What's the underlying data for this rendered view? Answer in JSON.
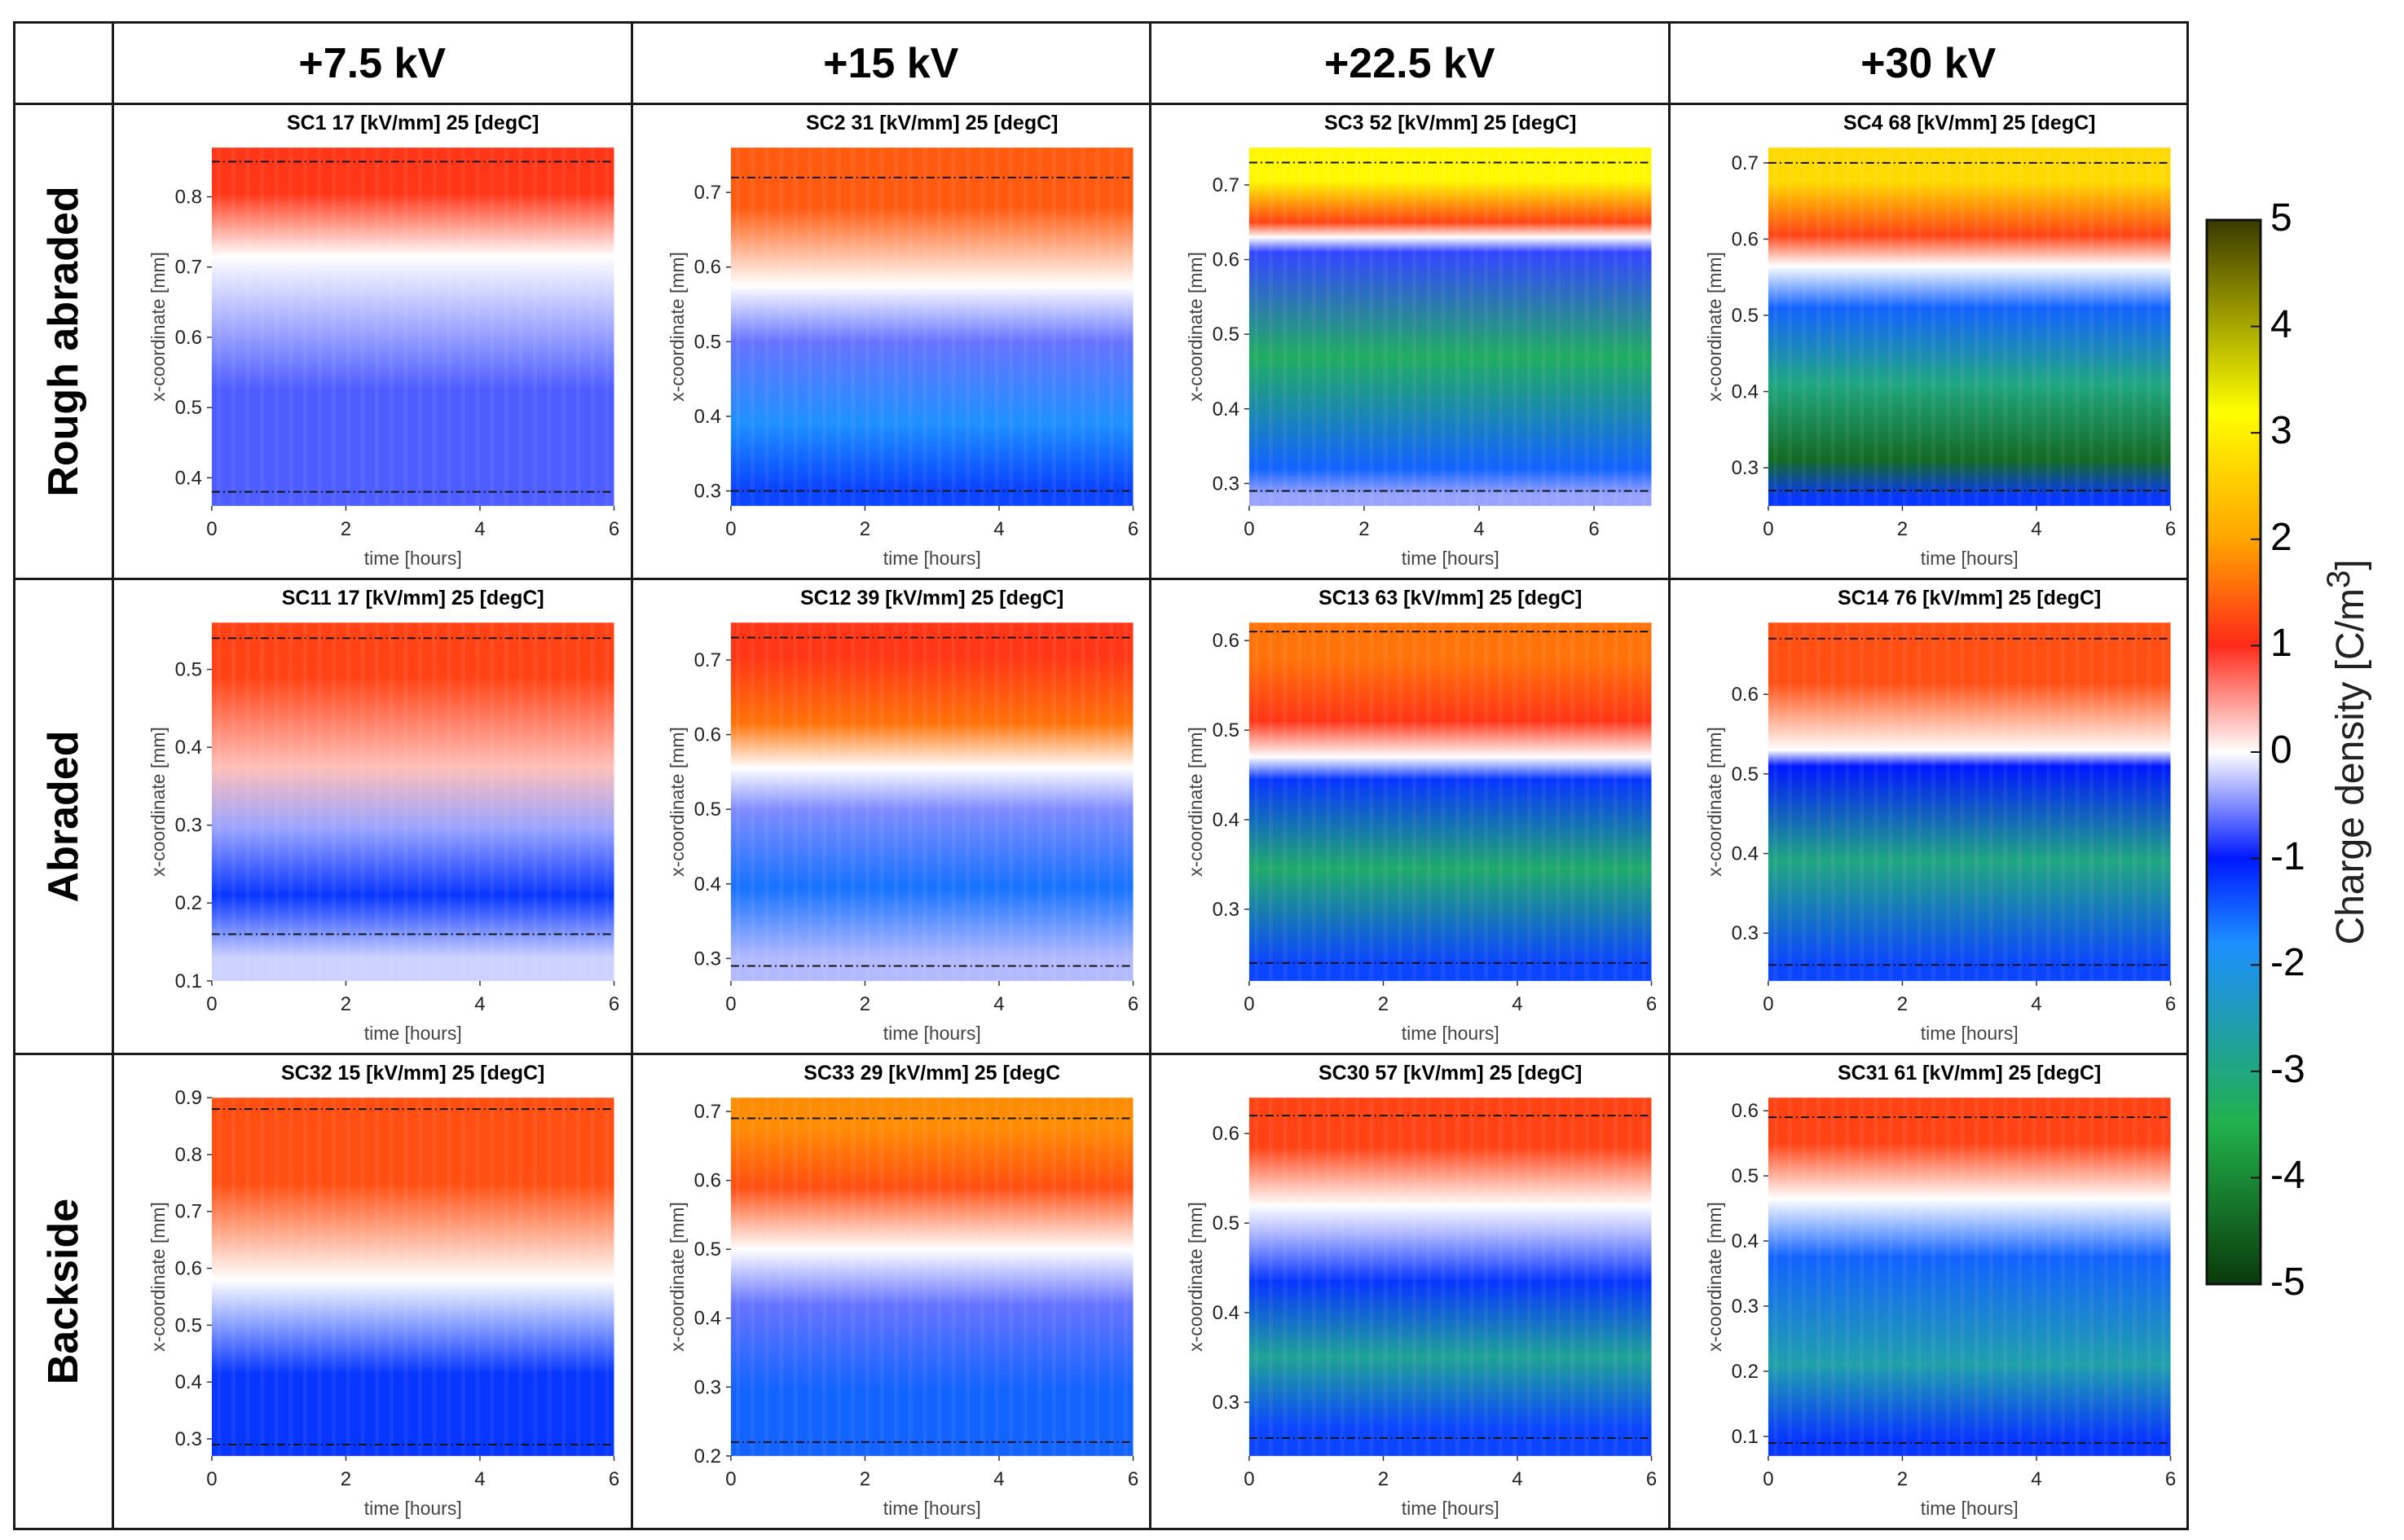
{
  "column_headers": [
    "+7.5 kV",
    "+15 kV",
    "+22.5 kV",
    "+30 kV"
  ],
  "row_headers": [
    "Rough abraded",
    "Abraded",
    "Backside"
  ],
  "colorbar": {
    "label": "Charge density [C/m",
    "label_sup": "3",
    "label_close": "]",
    "ticks": [
      "5",
      "4",
      "3",
      "2",
      "1",
      "0",
      "-1",
      "-2",
      "-3",
      "-4",
      "-5"
    ],
    "range": [
      -5,
      5
    ],
    "colors": [
      "#0a3a0a",
      "#22b14c",
      "#1e90ff",
      "#0018ff",
      "#ffffff",
      "#ff2a1a",
      "#ffa500",
      "#ffff00",
      "#3a3a00"
    ]
  },
  "chart_data": [
    {
      "type": "heatmap",
      "row": "Rough abraded",
      "column": "+7.5 kV",
      "title": "SC1 17 [kV/mm] 25 [degC]",
      "xlabel": "time [hours]",
      "ylabel": "x-coordinate [mm]",
      "xlim": [
        0,
        6
      ],
      "ylim": [
        0.36,
        0.87
      ],
      "xticks": [
        "0",
        "2",
        "4",
        "6"
      ],
      "yticks": [
        "0.4",
        "0.5",
        "0.6",
        "0.7",
        "0.8"
      ],
      "electrodes_mm": [
        0.38,
        0.85
      ],
      "bands": [
        {
          "from": 0.36,
          "to": 0.69,
          "charge": -0.7
        },
        {
          "from": 0.69,
          "to": 0.74,
          "charge": 0
        },
        {
          "from": 0.74,
          "to": 0.87,
          "charge": 1.1
        }
      ]
    },
    {
      "type": "heatmap",
      "row": "Rough abraded",
      "column": "+15 kV",
      "title": "SC2 31 [kV/mm] 25 [degC]",
      "xlabel": "time [hours]",
      "ylabel": "x-coordinate [mm]",
      "xlim": [
        0,
        6
      ],
      "ylim": [
        0.28,
        0.76
      ],
      "xticks": [
        "0",
        "2",
        "4",
        "6"
      ],
      "yticks": [
        "0.3",
        "0.4",
        "0.5",
        "0.6",
        "0.7"
      ],
      "electrodes_mm": [
        0.3,
        0.72
      ],
      "bands": [
        {
          "from": 0.28,
          "to": 0.33,
          "charge": -1.3
        },
        {
          "from": 0.33,
          "to": 0.45,
          "charge": -1.8
        },
        {
          "from": 0.45,
          "to": 0.55,
          "charge": -0.6
        },
        {
          "from": 0.55,
          "to": 0.6,
          "charge": 0
        },
        {
          "from": 0.6,
          "to": 0.76,
          "charge": 1.4
        }
      ]
    },
    {
      "type": "heatmap",
      "row": "Rough abraded",
      "column": "+22.5 kV",
      "title": "SC3 52 [kV/mm] 25 [degC]",
      "xlabel": "time [hours]",
      "ylabel": "x-coordinate [mm]",
      "xlim": [
        0,
        7
      ],
      "ylim": [
        0.27,
        0.75
      ],
      "xticks": [
        "0",
        "2",
        "4",
        "6"
      ],
      "yticks": [
        "0.3",
        "0.4",
        "0.5",
        "0.6",
        "0.7"
      ],
      "electrodes_mm": [
        0.29,
        0.73
      ],
      "bands": [
        {
          "from": 0.27,
          "to": 0.3,
          "charge": -0.4
        },
        {
          "from": 0.3,
          "to": 0.34,
          "charge": -1.5
        },
        {
          "from": 0.34,
          "to": 0.6,
          "charge": -3.3
        },
        {
          "from": 0.6,
          "to": 0.62,
          "charge": -0.8
        },
        {
          "from": 0.62,
          "to": 0.64,
          "charge": 0
        },
        {
          "from": 0.64,
          "to": 0.66,
          "charge": 1.2
        },
        {
          "from": 0.66,
          "to": 0.75,
          "charge": 3.1
        }
      ]
    },
    {
      "type": "heatmap",
      "row": "Rough abraded",
      "column": "+30 kV",
      "title": "SC4 68 [kV/mm] 25 [degC]",
      "xlabel": "time [hours]",
      "ylabel": "x-coordinate [mm]",
      "xlim": [
        0,
        6
      ],
      "ylim": [
        0.25,
        0.72
      ],
      "xticks": [
        "0",
        "2",
        "4",
        "6"
      ],
      "yticks": [
        "0.3",
        "0.4",
        "0.5",
        "0.6",
        "0.7"
      ],
      "electrodes_mm": [
        0.27,
        0.7
      ],
      "bands": [
        {
          "from": 0.25,
          "to": 0.27,
          "charge": -1.2
        },
        {
          "from": 0.27,
          "to": 0.35,
          "charge": -4.4
        },
        {
          "from": 0.35,
          "to": 0.47,
          "charge": -3
        },
        {
          "from": 0.47,
          "to": 0.55,
          "charge": -1.5
        },
        {
          "from": 0.55,
          "to": 0.58,
          "charge": 0
        },
        {
          "from": 0.58,
          "to": 0.63,
          "charge": 1.2
        },
        {
          "from": 0.63,
          "to": 0.72,
          "charge": 2.7
        }
      ]
    },
    {
      "type": "heatmap",
      "row": "Abraded",
      "column": "+7.5 kV",
      "title": "SC11 17 [kV/mm] 25 [degC]",
      "xlabel": "time [hours]",
      "ylabel": "x-coordinate [mm]",
      "xlim": [
        0,
        6
      ],
      "ylim": [
        0.1,
        0.56
      ],
      "xticks": [
        "0",
        "2",
        "4",
        "6"
      ],
      "yticks": [
        "0.1",
        "0.2",
        "0.3",
        "0.4",
        "0.5"
      ],
      "electrodes_mm": [
        0.16,
        0.54
      ],
      "bands": [
        {
          "from": 0.1,
          "to": 0.16,
          "charge": -0.2
        },
        {
          "from": 0.16,
          "to": 0.26,
          "charge": -1.2
        },
        {
          "from": 0.26,
          "to": 0.33,
          "charge": -0.4
        },
        {
          "from": 0.33,
          "to": 0.42,
          "charge": 0.3
        },
        {
          "from": 0.42,
          "to": 0.56,
          "charge": 1.2
        }
      ]
    },
    {
      "type": "heatmap",
      "row": "Abraded",
      "column": "+15 kV",
      "title": "SC12 39 [kV/mm] 25 [degC]",
      "xlabel": "time [hours]",
      "ylabel": "x-coordinate [mm]",
      "xlim": [
        0,
        6
      ],
      "ylim": [
        0.27,
        0.75
      ],
      "xticks": [
        "0",
        "2",
        "4",
        "6"
      ],
      "yticks": [
        "0.3",
        "0.4",
        "0.5",
        "0.6",
        "0.7"
      ],
      "electrodes_mm": [
        0.29,
        0.73
      ],
      "bands": [
        {
          "from": 0.27,
          "to": 0.33,
          "charge": -0.3
        },
        {
          "from": 0.33,
          "to": 0.46,
          "charge": -1.6
        },
        {
          "from": 0.46,
          "to": 0.54,
          "charge": -0.5
        },
        {
          "from": 0.54,
          "to": 0.57,
          "charge": 0
        },
        {
          "from": 0.57,
          "to": 0.66,
          "charge": 1.6
        },
        {
          "from": 0.66,
          "to": 0.75,
          "charge": 1.1
        }
      ]
    },
    {
      "type": "heatmap",
      "row": "Abraded",
      "column": "+22.5 kV",
      "title": "SC13 63 [kV/mm] 25 [degC]",
      "xlabel": "time [hours]",
      "ylabel": "x-coordinate [mm]",
      "xlim": [
        0,
        6
      ],
      "ylim": [
        0.22,
        0.62
      ],
      "xticks": [
        "0",
        "2",
        "4",
        "6"
      ],
      "yticks": [
        "0.3",
        "0.4",
        "0.5",
        "0.6"
      ],
      "electrodes_mm": [
        0.24,
        0.61
      ],
      "bands": [
        {
          "from": 0.22,
          "to": 0.26,
          "charge": -1.3
        },
        {
          "from": 0.26,
          "to": 0.43,
          "charge": -3.2
        },
        {
          "from": 0.43,
          "to": 0.46,
          "charge": -1.2
        },
        {
          "from": 0.46,
          "to": 0.48,
          "charge": 0
        },
        {
          "from": 0.48,
          "to": 0.54,
          "charge": 1.1
        },
        {
          "from": 0.54,
          "to": 0.62,
          "charge": 1.6
        }
      ]
    },
    {
      "type": "heatmap",
      "row": "Abraded",
      "column": "+30 kV",
      "title": "SC14 76 [kV/mm] 25 [degC]",
      "xlabel": "time [hours]",
      "ylabel": "x-coordinate [mm]",
      "xlim": [
        0,
        6
      ],
      "ylim": [
        0.24,
        0.69
      ],
      "xticks": [
        "0",
        "2",
        "4",
        "6"
      ],
      "yticks": [
        "0.3",
        "0.4",
        "0.5",
        "0.6"
      ],
      "electrodes_mm": [
        0.26,
        0.67
      ],
      "bands": [
        {
          "from": 0.24,
          "to": 0.28,
          "charge": -1.3
        },
        {
          "from": 0.28,
          "to": 0.5,
          "charge": -3
        },
        {
          "from": 0.5,
          "to": 0.52,
          "charge": -1
        },
        {
          "from": 0.52,
          "to": 0.54,
          "charge": 0
        },
        {
          "from": 0.54,
          "to": 0.69,
          "charge": 1.3
        }
      ]
    },
    {
      "type": "heatmap",
      "row": "Backside",
      "column": "+7.5 kV",
      "title": "SC32 15 [kV/mm] 25 [degC]",
      "xlabel": "time [hours]",
      "ylabel": "x-coordinate [mm]",
      "xlim": [
        0,
        6
      ],
      "ylim": [
        0.27,
        0.9
      ],
      "xticks": [
        "0",
        "2",
        "4",
        "6"
      ],
      "yticks": [
        "0.3",
        "0.4",
        "0.5",
        "0.6",
        "0.7",
        "0.8",
        "0.9"
      ],
      "electrodes_mm": [
        0.29,
        0.88
      ],
      "bands": [
        {
          "from": 0.27,
          "to": 0.56,
          "charge": -1.2
        },
        {
          "from": 0.56,
          "to": 0.6,
          "charge": 0
        },
        {
          "from": 0.6,
          "to": 0.9,
          "charge": 1.3
        }
      ]
    },
    {
      "type": "heatmap",
      "row": "Backside",
      "column": "+15 kV",
      "title": "SC33 29 [kV/mm] 25 [degC",
      "xlabel": "time [hours]",
      "ylabel": "x-coordinate [mm]",
      "xlim": [
        0,
        6
      ],
      "ylim": [
        0.2,
        0.72
      ],
      "xticks": [
        "0",
        "2",
        "4",
        "6"
      ],
      "yticks": [
        "0.2",
        "0.3",
        "0.4",
        "0.5",
        "0.6",
        "0.7"
      ],
      "electrodes_mm": [
        0.22,
        0.69
      ],
      "bands": [
        {
          "from": 0.2,
          "to": 0.39,
          "charge": -1.5
        },
        {
          "from": 0.39,
          "to": 0.45,
          "charge": -0.6
        },
        {
          "from": 0.45,
          "to": 0.55,
          "charge": 0
        },
        {
          "from": 0.55,
          "to": 0.63,
          "charge": 1.3
        },
        {
          "from": 0.63,
          "to": 0.72,
          "charge": 1.8
        }
      ]
    },
    {
      "type": "heatmap",
      "row": "Backside",
      "column": "+22.5 kV",
      "title": "SC30 57 [kV/mm] 25 [degC]",
      "xlabel": "time [hours]",
      "ylabel": "x-coordinate [mm]",
      "xlim": [
        0,
        6
      ],
      "ylim": [
        0.24,
        0.64
      ],
      "xticks": [
        "0",
        "2",
        "4",
        "6"
      ],
      "yticks": [
        "0.3",
        "0.4",
        "0.5",
        "0.6"
      ],
      "electrodes_mm": [
        0.26,
        0.62
      ],
      "bands": [
        {
          "from": 0.24,
          "to": 0.3,
          "charge": -1.3
        },
        {
          "from": 0.3,
          "to": 0.4,
          "charge": -2.8
        },
        {
          "from": 0.4,
          "to": 0.47,
          "charge": -1.2
        },
        {
          "from": 0.47,
          "to": 0.51,
          "charge": -0.3
        },
        {
          "from": 0.51,
          "to": 0.53,
          "charge": 0
        },
        {
          "from": 0.53,
          "to": 0.64,
          "charge": 1.2
        }
      ]
    },
    {
      "type": "heatmap",
      "row": "Backside",
      "column": "+30 kV",
      "title": "SC31 61 [kV/mm] 25 [degC]",
      "xlabel": "time [hours]",
      "ylabel": "x-coordinate [mm]",
      "xlim": [
        0,
        6
      ],
      "ylim": [
        0.07,
        0.62
      ],
      "xticks": [
        "0",
        "2",
        "4",
        "6"
      ],
      "yticks": [
        "0.1",
        "0.2",
        "0.3",
        "0.4",
        "0.5",
        "0.6"
      ],
      "electrodes_mm": [
        0.09,
        0.59
      ],
      "bands": [
        {
          "from": 0.07,
          "to": 0.12,
          "charge": -1.2
        },
        {
          "from": 0.12,
          "to": 0.3,
          "charge": -2.6
        },
        {
          "from": 0.3,
          "to": 0.45,
          "charge": -1.5
        },
        {
          "from": 0.45,
          "to": 0.48,
          "charge": 0
        },
        {
          "from": 0.48,
          "to": 0.62,
          "charge": 1.2
        }
      ]
    }
  ]
}
